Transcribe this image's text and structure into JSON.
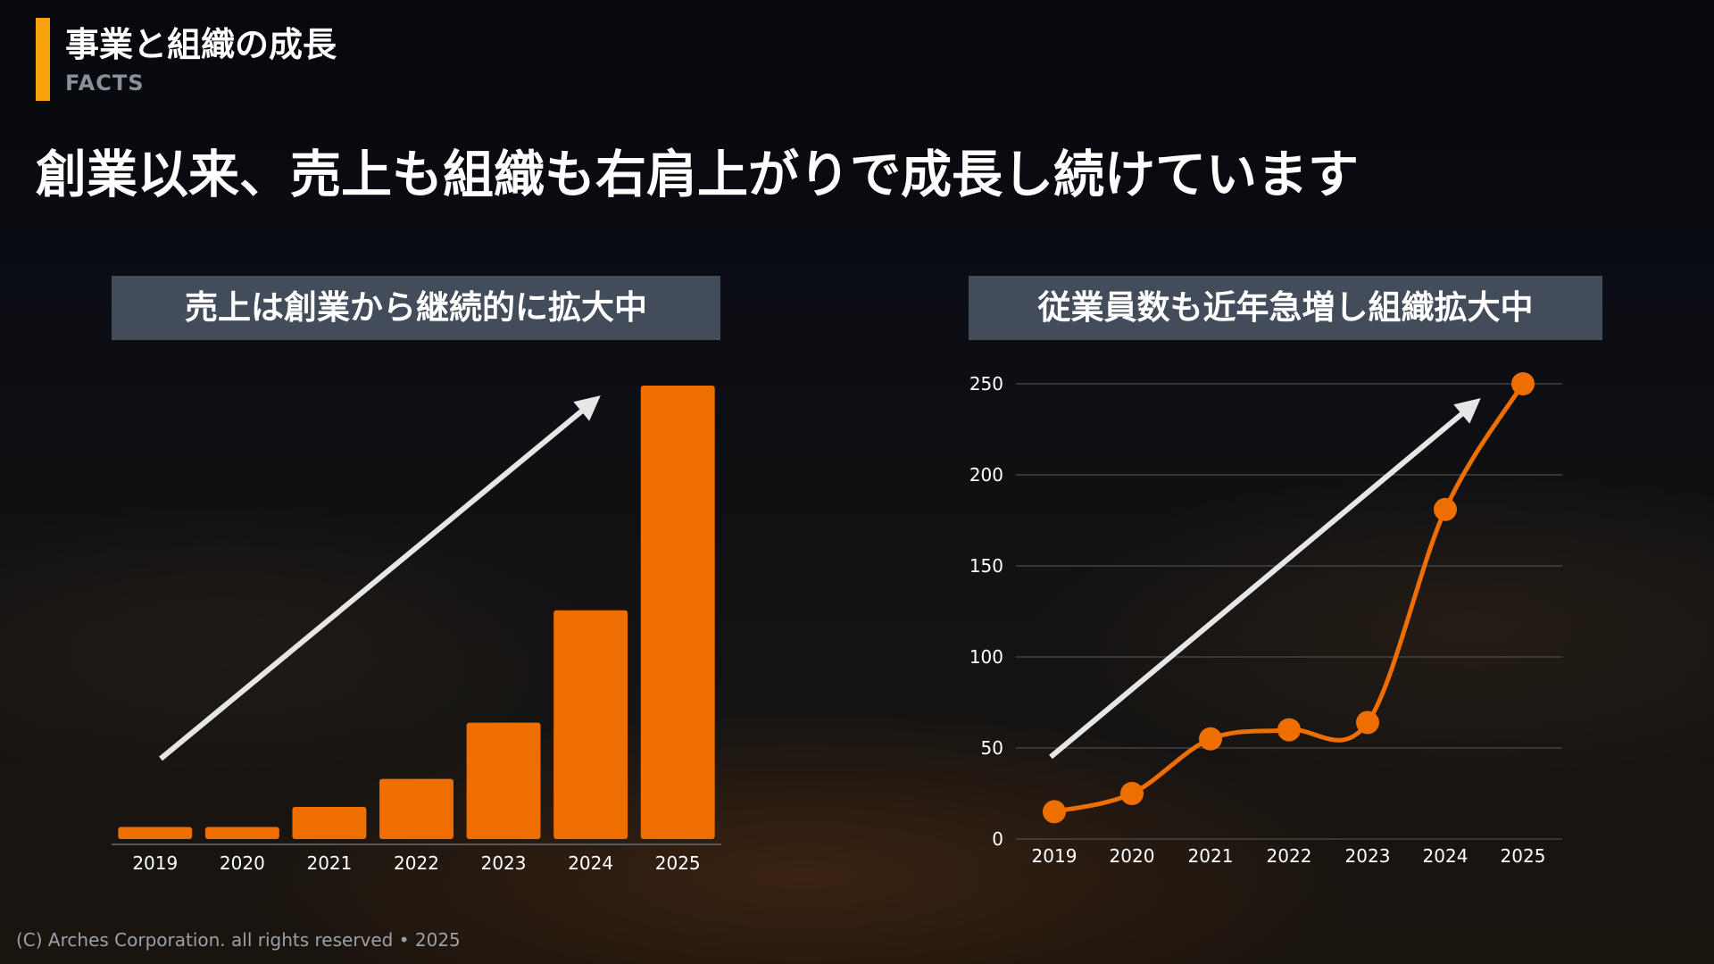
{
  "section": {
    "title": "事業と組織の成長",
    "subtitle": "FACTS",
    "accent_color": "#f5a20b"
  },
  "headline": "創業以来、売上も組織も右肩上がりで成長し続けています",
  "footer": "(C) Arches Corporation. all rights reserved • 2025",
  "chart_data": [
    {
      "type": "bar",
      "title": "売上は創業から継続的に拡大中",
      "categories": [
        "2019",
        "2020",
        "2021",
        "2022",
        "2023",
        "2024",
        "2025"
      ],
      "values": [
        3,
        3,
        8,
        15,
        29,
        57,
        113
      ],
      "ylim": [
        0,
        113
      ],
      "color": "#ee6e00",
      "grid": false,
      "trend_arrow": true
    },
    {
      "type": "line",
      "title": "従業員数も近年急増し組織拡大中",
      "categories": [
        "2019",
        "2020",
        "2021",
        "2022",
        "2023",
        "2024",
        "2025"
      ],
      "values": [
        15,
        25,
        55,
        60,
        64,
        181,
        250
      ],
      "ylim": [
        0,
        250
      ],
      "yticks": [
        0,
        50,
        100,
        150,
        200,
        250
      ],
      "color": "#ee6e00",
      "grid": true,
      "trend_arrow": true
    }
  ]
}
